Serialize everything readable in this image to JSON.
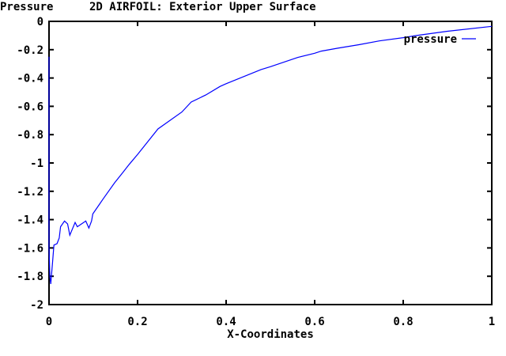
{
  "chart_data": {
    "type": "line",
    "ylabel_top": "Pressure",
    "title": "2D AIRFOIL: Exterior Upper Surface",
    "xlabel": "X-Coordinates",
    "xlim": [
      0,
      1
    ],
    "ylim": [
      -2,
      0
    ],
    "xticks": [
      0,
      0.2,
      0.4,
      0.6,
      0.8,
      1
    ],
    "xtick_labels": [
      "0",
      "0.2",
      "0.4",
      "0.6",
      "0.8",
      "1"
    ],
    "yticks": [
      0,
      -0.2,
      -0.4,
      -0.6,
      -0.8,
      -1,
      -1.2,
      -1.4,
      -1.6,
      -1.8,
      -2
    ],
    "ytick_labels": [
      "0",
      "-0.2",
      "-0.4",
      "-0.6",
      "-0.8",
      "-1",
      "-1.2",
      "-1.4",
      "-1.6",
      "-1.8",
      "-2"
    ],
    "grid": false,
    "legend_position": "top-right",
    "series": [
      {
        "name": "pressure",
        "color": "#0000ff",
        "x": [
          0,
          0,
          0.002,
          0.004,
          0.008,
          0.011,
          0.018,
          0.023,
          0.026,
          0.035,
          0.042,
          0.047,
          0.059,
          0.064,
          0.083,
          0.09,
          0.096,
          0.099,
          0.123,
          0.148,
          0.166,
          0.181,
          0.2,
          0.246,
          0.3,
          0.321,
          0.354,
          0.386,
          0.4,
          0.479,
          0.5,
          0.562,
          0.6,
          0.615,
          0.651,
          0.7,
          0.746,
          0.8,
          0.83,
          0.9,
          1.0
        ],
        "y": [
          -0.25,
          -1.6,
          -1.8,
          -1.855,
          -1.7,
          -1.58,
          -1.57,
          -1.53,
          -1.45,
          -1.41,
          -1.43,
          -1.51,
          -1.42,
          -1.45,
          -1.41,
          -1.46,
          -1.41,
          -1.36,
          -1.25,
          -1.14,
          -1.07,
          -1.01,
          -0.94,
          -0.76,
          -0.64,
          -0.57,
          -0.52,
          -0.46,
          -0.44,
          -0.34,
          -0.32,
          -0.255,
          -0.225,
          -0.21,
          -0.19,
          -0.165,
          -0.138,
          -0.115,
          -0.1,
          -0.07,
          -0.035
        ]
      }
    ]
  }
}
